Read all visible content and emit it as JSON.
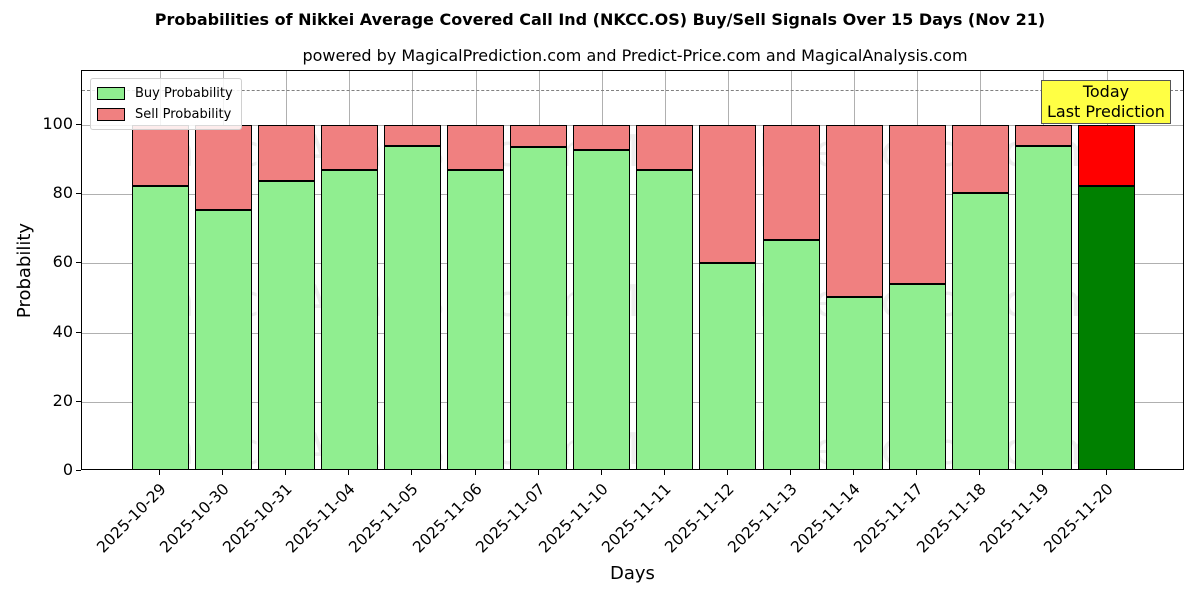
{
  "title": "Probabilities of Nikkei Average Covered Call Ind (NKCC.OS) Buy/Sell Signals Over 15 Days (Nov 21)",
  "subtitle": "powered by MagicalPrediction.com and Predict-Price.com and MagicalAnalysis.com",
  "xlabel": "Days",
  "ylabel": "Probability",
  "legend": {
    "buy": "Buy Probability",
    "sell": "Sell Probability"
  },
  "annotation": {
    "line1": "Today",
    "line2": "Last Prediction"
  },
  "watermarks": [
    "MagicalAnalysis.com",
    "MagicalPrediction.com"
  ],
  "colors": {
    "buy": "#90ee90",
    "sell": "#f08080",
    "buy_today": "#008000",
    "sell_today": "#ff0000",
    "annotation_bg": "#ffff44",
    "dashed_line": "#808080"
  },
  "yticks": [
    0,
    20,
    40,
    60,
    80,
    100
  ],
  "chart_data": {
    "type": "bar",
    "stacked": true,
    "title": "Probabilities of Nikkei Average Covered Call Ind (NKCC.OS) Buy/Sell Signals Over 15 Days (Nov 21)",
    "subtitle": "powered by MagicalPrediction.com and Predict-Price.com and MagicalAnalysis.com",
    "xlabel": "Days",
    "ylabel": "Probability",
    "ylim": [
      0,
      115.6
    ],
    "grid": true,
    "legend_position": "upper left",
    "reference_line": {
      "y": 110,
      "style": "dashed",
      "color": "#808080"
    },
    "annotations": [
      {
        "text": "Today\nLast Prediction",
        "x": "2025-11-20"
      }
    ],
    "categories": [
      "2025-10-29",
      "2025-10-30",
      "2025-10-31",
      "2025-11-04",
      "2025-11-05",
      "2025-11-06",
      "2025-11-07",
      "2025-11-10",
      "2025-11-11",
      "2025-11-12",
      "2025-11-13",
      "2025-11-14",
      "2025-11-17",
      "2025-11-18",
      "2025-11-19",
      "2025-11-20"
    ],
    "series": [
      {
        "name": "Buy Probability",
        "values": [
          82.5,
          75.5,
          83.7,
          87.1,
          93.8,
          87.1,
          93.5,
          92.9,
          87.0,
          60.2,
          66.9,
          50.2,
          54.0,
          80.3,
          94.0,
          82.5
        ]
      },
      {
        "name": "Sell Probability",
        "values": [
          17.5,
          24.5,
          16.3,
          12.9,
          6.2,
          12.9,
          6.5,
          7.1,
          13.0,
          39.8,
          33.1,
          49.8,
          46.0,
          19.7,
          6.0,
          17.5
        ]
      }
    ]
  }
}
